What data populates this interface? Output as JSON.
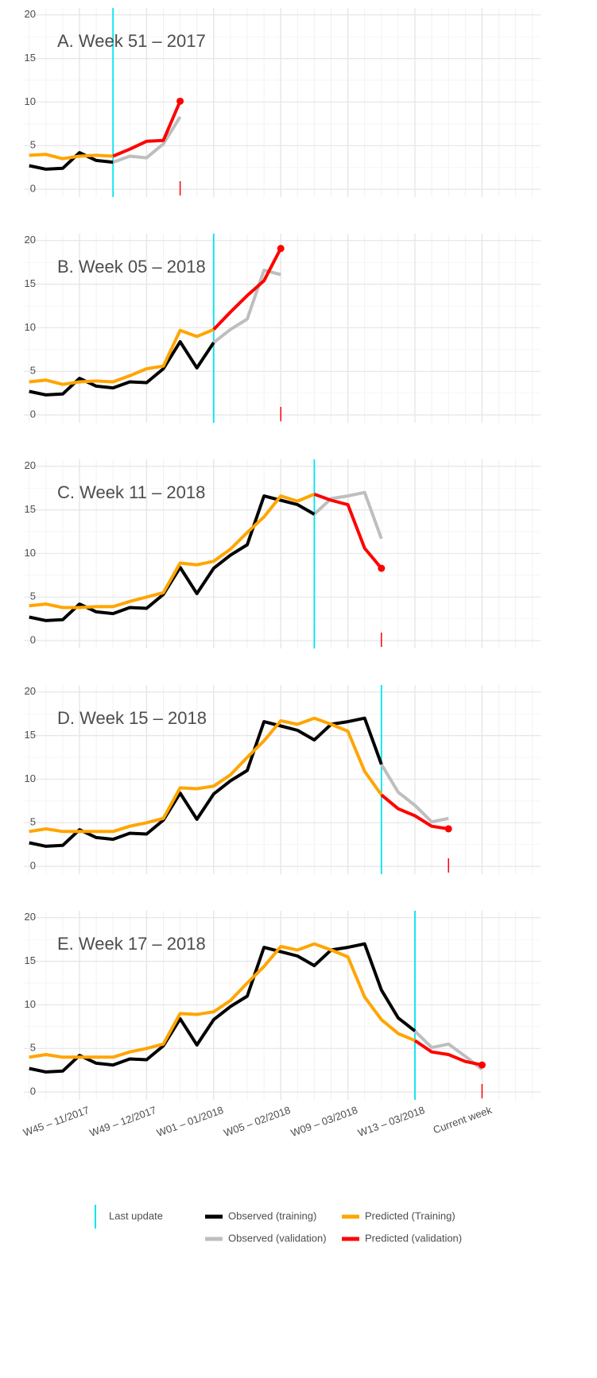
{
  "chart_data": [
    {
      "type": "line",
      "title": "A. Week 51 – 2017",
      "ylim": [
        -0.9,
        20.8
      ],
      "yticks": [
        0,
        5,
        10,
        15,
        20
      ],
      "grid": true,
      "series": [
        {
          "color": "#000000",
          "values": [
            2.7,
            2.3,
            2.4,
            4.2,
            3.3,
            3.1,
            null,
            null,
            null,
            null,
            null,
            null,
            null,
            null,
            null,
            null,
            null,
            null,
            null,
            null,
            null,
            null,
            null,
            null,
            null,
            null,
            null,
            null,
            null,
            null,
            null
          ]
        },
        {
          "color": "#ffa500",
          "values": [
            3.9,
            4.0,
            3.5,
            3.8,
            3.9,
            3.8,
            null,
            null,
            null,
            null,
            null,
            null,
            null,
            null,
            null,
            null,
            null,
            null,
            null,
            null,
            null,
            null,
            null,
            null,
            null,
            null,
            null,
            null,
            null,
            null,
            null
          ]
        },
        {
          "color": "#bebebe",
          "values": [
            null,
            null,
            null,
            null,
            null,
            3.1,
            3.8,
            3.6,
            5.2,
            8.3,
            null,
            null,
            null,
            null,
            null,
            null,
            null,
            null,
            null,
            null,
            null,
            null,
            null,
            null,
            null,
            null,
            null,
            null,
            null,
            null,
            null
          ]
        },
        {
          "color": "#ff0000",
          "values": [
            null,
            null,
            null,
            null,
            null,
            3.8,
            4.6,
            5.5,
            5.6,
            10.1,
            null,
            null,
            null,
            null,
            null,
            null,
            null,
            null,
            null,
            null,
            null,
            null,
            null,
            null,
            null,
            null,
            null,
            null,
            null,
            null,
            null
          ]
        }
      ]
    },
    {
      "type": "line",
      "title": "B. Week 05 – 2018",
      "ylim": [
        -0.9,
        20.8
      ],
      "yticks": [
        0,
        5,
        10,
        15,
        20
      ],
      "grid": true,
      "series": [
        {
          "color": "#000000",
          "values": [
            2.7,
            2.3,
            2.4,
            4.2,
            3.3,
            3.1,
            3.8,
            3.7,
            5.3,
            8.4,
            5.4,
            8.3,
            null,
            null,
            null,
            null,
            null,
            null,
            null,
            null,
            null,
            null,
            null,
            null,
            null,
            null,
            null,
            null,
            null,
            null,
            null
          ]
        },
        {
          "color": "#ffa500",
          "values": [
            3.8,
            4.0,
            3.5,
            3.8,
            3.9,
            3.8,
            4.5,
            5.3,
            5.6,
            9.7,
            9.0,
            9.8,
            null,
            null,
            null,
            null,
            null,
            null,
            null,
            null,
            null,
            null,
            null,
            null,
            null,
            null,
            null,
            null,
            null,
            null,
            null
          ]
        },
        {
          "color": "#bebebe",
          "values": [
            null,
            null,
            null,
            null,
            null,
            null,
            null,
            null,
            null,
            null,
            null,
            8.3,
            9.8,
            11.0,
            16.6,
            16.1,
            null,
            null,
            null,
            null,
            null,
            null,
            null,
            null,
            null,
            null,
            null,
            null,
            null,
            null,
            null
          ]
        },
        {
          "color": "#ff0000",
          "values": [
            null,
            null,
            null,
            null,
            null,
            null,
            null,
            null,
            null,
            null,
            null,
            9.8,
            11.8,
            13.7,
            15.4,
            19.1,
            null,
            null,
            null,
            null,
            null,
            null,
            null,
            null,
            null,
            null,
            null,
            null,
            null,
            null,
            null
          ]
        }
      ]
    },
    {
      "type": "line",
      "title": "C. Week 11 – 2018",
      "ylim": [
        -0.9,
        20.8
      ],
      "yticks": [
        0,
        5,
        10,
        15,
        20
      ],
      "grid": true,
      "series": [
        {
          "color": "#000000",
          "values": [
            2.7,
            2.3,
            2.4,
            4.2,
            3.3,
            3.1,
            3.8,
            3.7,
            5.3,
            8.4,
            5.4,
            8.3,
            9.8,
            11.0,
            16.6,
            16.1,
            15.6,
            14.5,
            null,
            null,
            null,
            null,
            null,
            null,
            null,
            null,
            null,
            null,
            null,
            null,
            null
          ]
        },
        {
          "color": "#ffa500",
          "values": [
            4.0,
            4.2,
            3.8,
            3.8,
            3.9,
            3.9,
            4.5,
            5.0,
            5.5,
            8.9,
            8.7,
            9.1,
            10.5,
            12.4,
            14.2,
            16.6,
            16.0,
            16.8,
            null,
            null,
            null,
            null,
            null,
            null,
            null,
            null,
            null,
            null,
            null,
            null,
            null
          ]
        },
        {
          "color": "#bebebe",
          "values": [
            null,
            null,
            null,
            null,
            null,
            null,
            null,
            null,
            null,
            null,
            null,
            null,
            null,
            null,
            null,
            null,
            null,
            14.5,
            16.3,
            16.6,
            17.0,
            11.7,
            null,
            null,
            null,
            null,
            null,
            null,
            null,
            null,
            null
          ]
        },
        {
          "color": "#ff0000",
          "values": [
            null,
            null,
            null,
            null,
            null,
            null,
            null,
            null,
            null,
            null,
            null,
            null,
            null,
            null,
            null,
            null,
            null,
            16.8,
            16.1,
            15.6,
            10.6,
            8.3,
            null,
            null,
            null,
            null,
            null,
            null,
            null,
            null,
            null
          ]
        }
      ]
    },
    {
      "type": "line",
      "title": "D. Week 15 – 2018",
      "ylim": [
        -0.9,
        20.8
      ],
      "yticks": [
        0,
        5,
        10,
        15,
        20
      ],
      "grid": true,
      "series": [
        {
          "color": "#000000",
          "values": [
            2.7,
            2.3,
            2.4,
            4.2,
            3.3,
            3.1,
            3.8,
            3.7,
            5.3,
            8.4,
            5.4,
            8.3,
            9.8,
            11.0,
            16.6,
            16.1,
            15.6,
            14.5,
            16.3,
            16.6,
            17.0,
            11.7,
            null,
            null,
            null,
            null,
            null,
            null,
            null,
            null,
            null
          ]
        },
        {
          "color": "#ffa500",
          "values": [
            4.0,
            4.3,
            4.0,
            4.0,
            4.0,
            4.0,
            4.6,
            5.0,
            5.5,
            9.0,
            8.9,
            9.2,
            10.5,
            12.5,
            14.4,
            16.7,
            16.3,
            17.0,
            16.3,
            15.5,
            10.9,
            8.2,
            null,
            null,
            null,
            null,
            null,
            null,
            null,
            null,
            null
          ]
        },
        {
          "color": "#bebebe",
          "values": [
            null,
            null,
            null,
            null,
            null,
            null,
            null,
            null,
            null,
            null,
            null,
            null,
            null,
            null,
            null,
            null,
            null,
            null,
            null,
            null,
            null,
            11.7,
            8.5,
            7.0,
            5.1,
            5.5,
            null,
            null,
            null,
            null,
            null
          ]
        },
        {
          "color": "#ff0000",
          "values": [
            null,
            null,
            null,
            null,
            null,
            null,
            null,
            null,
            null,
            null,
            null,
            null,
            null,
            null,
            null,
            null,
            null,
            null,
            null,
            null,
            null,
            8.2,
            6.6,
            5.8,
            4.6,
            4.3,
            null,
            null,
            null,
            null,
            null
          ]
        }
      ]
    },
    {
      "type": "line",
      "title": "E. Week 17 – 2018",
      "ylim": [
        -0.9,
        20.8
      ],
      "yticks": [
        0,
        5,
        10,
        15,
        20
      ],
      "grid": true,
      "categories": [
        null,
        null,
        null,
        "W45 – 11/2017",
        null,
        null,
        null,
        "W49 – 12/2017",
        null,
        null,
        null,
        "W01 – 01/2018",
        null,
        null,
        null,
        "W05 – 02/2018",
        null,
        null,
        null,
        "W09 – 03/2018",
        null,
        null,
        null,
        "W13 – 03/2018",
        null,
        null,
        null,
        "Current week",
        null,
        null,
        null
      ],
      "series": [
        {
          "name": "Observed (training)",
          "color": "#000000",
          "values": [
            2.7,
            2.3,
            2.4,
            4.2,
            3.3,
            3.1,
            3.8,
            3.7,
            5.3,
            8.4,
            5.4,
            8.3,
            9.8,
            11.0,
            16.6,
            16.1,
            15.6,
            14.5,
            16.3,
            16.6,
            17.0,
            11.7,
            8.5,
            7.0,
            null,
            null,
            null,
            null,
            null,
            null,
            null
          ]
        },
        {
          "name": "Predicted (Training)",
          "color": "#ffa500",
          "values": [
            4.0,
            4.3,
            4.0,
            4.0,
            4.0,
            4.0,
            4.6,
            5.0,
            5.5,
            9.0,
            8.9,
            9.2,
            10.5,
            12.5,
            14.4,
            16.7,
            16.3,
            17.0,
            16.3,
            15.5,
            10.9,
            8.3,
            6.7,
            5.9,
            null,
            null,
            null,
            null,
            null,
            null,
            null
          ]
        },
        {
          "name": "Observed (validation)",
          "color": "#bebebe",
          "values": [
            null,
            null,
            null,
            null,
            null,
            null,
            null,
            null,
            null,
            null,
            null,
            null,
            null,
            null,
            null,
            null,
            null,
            null,
            null,
            null,
            null,
            null,
            null,
            7.0,
            5.1,
            5.5,
            4.1,
            2.6,
            null,
            null,
            null
          ]
        },
        {
          "name": "Predicted (validation)",
          "color": "#ff0000",
          "values": [
            null,
            null,
            null,
            null,
            null,
            null,
            null,
            null,
            null,
            null,
            null,
            null,
            null,
            null,
            null,
            null,
            null,
            null,
            null,
            null,
            null,
            null,
            null,
            5.9,
            4.6,
            4.3,
            3.5,
            3.1,
            null,
            null,
            null
          ]
        }
      ]
    }
  ],
  "last_update": {
    "label": "Last update",
    "color": "#00e5ee"
  }
}
